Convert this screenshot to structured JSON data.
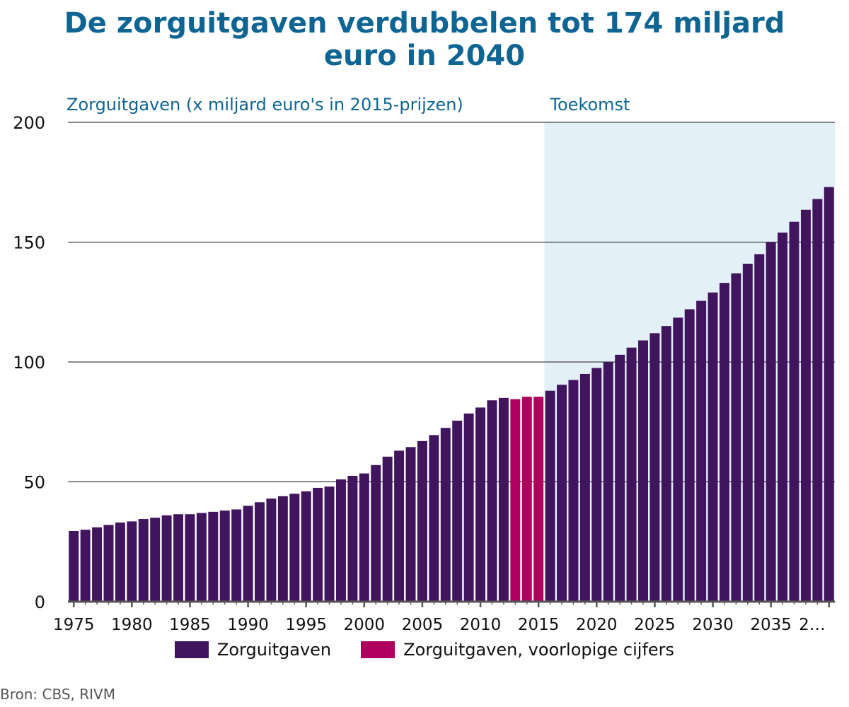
{
  "chart_data": {
    "type": "bar",
    "title": [
      "De zorguitgaven verdubbelen tot 174 miljard",
      "euro in 2040"
    ],
    "ylabel": "Zorguitgaven (x miljard euro's in 2015-prijzen)",
    "future_label": "Toekomst",
    "future_start": 2015,
    "ylim": [
      0,
      200
    ],
    "yticks": [
      "0",
      "50",
      "100",
      "150",
      "200"
    ],
    "xticks": [
      "1975",
      "1980",
      "1985",
      "1990",
      "1995",
      "2000",
      "2005",
      "2010",
      "2015",
      "2020",
      "2025",
      "2030",
      "2035",
      "2…"
    ],
    "grid": true,
    "legend_placement": "bottom",
    "categories": [
      1975,
      1976,
      1977,
      1978,
      1979,
      1980,
      1981,
      1982,
      1983,
      1984,
      1985,
      1986,
      1987,
      1988,
      1989,
      1990,
      1991,
      1992,
      1993,
      1994,
      1995,
      1996,
      1997,
      1998,
      1999,
      2000,
      2001,
      2002,
      2003,
      2004,
      2005,
      2006,
      2007,
      2008,
      2009,
      2010,
      2011,
      2012,
      2013,
      2014,
      2015,
      2016,
      2017,
      2018,
      2019,
      2020,
      2021,
      2022,
      2023,
      2024,
      2025,
      2026,
      2027,
      2028,
      2029,
      2030,
      2031,
      2032,
      2033,
      2034,
      2035,
      2036,
      2037,
      2038,
      2039,
      2040
    ],
    "series": [
      {
        "name": "Zorguitgaven",
        "color": "#41145e",
        "values": [
          29.5,
          30,
          31,
          32,
          33,
          33.5,
          34.5,
          35,
          36,
          36.5,
          36.5,
          37,
          37.5,
          38,
          38.5,
          40,
          41.5,
          43,
          44,
          45,
          46,
          47.5,
          48,
          51,
          52.5,
          53.5,
          57,
          60.5,
          63,
          64.5,
          67,
          69.5,
          72.5,
          75.5,
          78.5,
          81,
          84,
          85,
          null,
          null,
          null,
          88,
          90.5,
          92.5,
          95,
          97.5,
          100,
          103,
          106,
          109,
          112,
          115,
          118.5,
          122,
          125.5,
          129,
          133,
          137,
          141,
          145,
          150,
          154,
          158.5,
          163.5,
          168,
          173
        ]
      },
      {
        "name": "Zorguitgaven, voorlopige cijfers",
        "color": "#b0005e",
        "values": [
          null,
          null,
          null,
          null,
          null,
          null,
          null,
          null,
          null,
          null,
          null,
          null,
          null,
          null,
          null,
          null,
          null,
          null,
          null,
          null,
          null,
          null,
          null,
          null,
          null,
          null,
          null,
          null,
          null,
          null,
          null,
          null,
          null,
          null,
          null,
          null,
          null,
          null,
          84.5,
          85.5,
          85.5,
          null,
          null,
          null,
          null,
          null,
          null,
          null,
          null,
          null,
          null,
          null,
          null,
          null,
          null,
          null,
          null,
          null,
          null,
          null,
          null,
          null,
          null,
          null,
          null,
          null
        ]
      }
    ]
  },
  "source": "Bron: CBS, RIVM",
  "colors": {
    "title": "#0e6593",
    "future_band": "#e3f0f8",
    "axis": "#555555"
  }
}
